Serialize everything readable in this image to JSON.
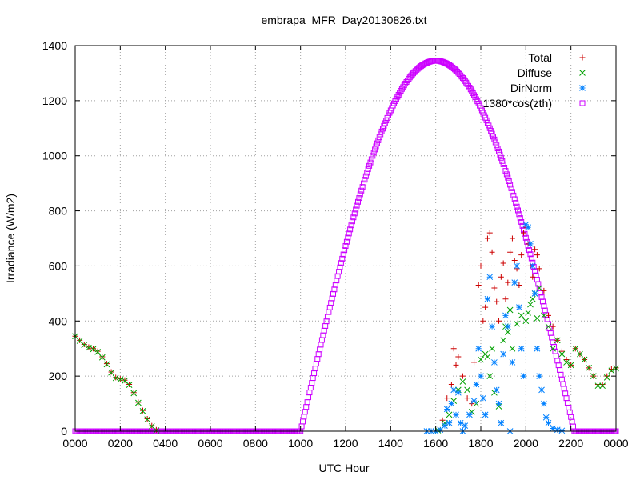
{
  "chart_data": {
    "type": "scatter",
    "title": "embrapa_MFR_Day20130826.txt",
    "xlabel": "UTC Hour",
    "ylabel": "Irradiance (W/m2)",
    "xlim": [
      0,
      24
    ],
    "ylim": [
      0,
      1400
    ],
    "grid": true,
    "legend_position": "top-right",
    "x_ticks": [
      {
        "v": 0,
        "label": "0000"
      },
      {
        "v": 2,
        "label": "0200"
      },
      {
        "v": 4,
        "label": "0400"
      },
      {
        "v": 6,
        "label": "0600"
      },
      {
        "v": 8,
        "label": "0800"
      },
      {
        "v": 10,
        "label": "1000"
      },
      {
        "v": 12,
        "label": "1200"
      },
      {
        "v": 14,
        "label": "1400"
      },
      {
        "v": 16,
        "label": "1600"
      },
      {
        "v": 18,
        "label": "1800"
      },
      {
        "v": 20,
        "label": "2000"
      },
      {
        "v": 22,
        "label": "2200"
      },
      {
        "v": 24,
        "label": "0000"
      }
    ],
    "y_ticks": [
      {
        "v": 0,
        "label": "0"
      },
      {
        "v": 200,
        "label": "200"
      },
      {
        "v": 400,
        "label": "400"
      },
      {
        "v": 600,
        "label": "600"
      },
      {
        "v": 800,
        "label": "800"
      },
      {
        "v": 1000,
        "label": "1000"
      },
      {
        "v": 1200,
        "label": "1200"
      },
      {
        "v": 1400,
        "label": "1400"
      }
    ],
    "series": [
      {
        "name": "Total",
        "marker": "plus",
        "color": "#cc0000",
        "points": [
          [
            0.0,
            345
          ],
          [
            0.2,
            330
          ],
          [
            0.4,
            315
          ],
          [
            0.6,
            305
          ],
          [
            0.8,
            300
          ],
          [
            1.0,
            290
          ],
          [
            1.2,
            270
          ],
          [
            1.4,
            245
          ],
          [
            1.6,
            215
          ],
          [
            1.8,
            195
          ],
          [
            2.0,
            190
          ],
          [
            2.2,
            185
          ],
          [
            2.4,
            170
          ],
          [
            2.6,
            140
          ],
          [
            2.8,
            105
          ],
          [
            3.0,
            75
          ],
          [
            3.2,
            45
          ],
          [
            3.4,
            20
          ],
          [
            3.6,
            5
          ],
          [
            16.1,
            5
          ],
          [
            16.3,
            40
          ],
          [
            16.5,
            120
          ],
          [
            16.7,
            170
          ],
          [
            16.8,
            300
          ],
          [
            16.9,
            240
          ],
          [
            17.0,
            270
          ],
          [
            17.2,
            200
          ],
          [
            17.4,
            120
          ],
          [
            17.6,
            100
          ],
          [
            17.7,
            250
          ],
          [
            17.9,
            530
          ],
          [
            18.0,
            600
          ],
          [
            18.1,
            400
          ],
          [
            18.2,
            450
          ],
          [
            18.3,
            700
          ],
          [
            18.4,
            720
          ],
          [
            18.5,
            650
          ],
          [
            18.6,
            520
          ],
          [
            18.7,
            470
          ],
          [
            18.8,
            400
          ],
          [
            18.9,
            560
          ],
          [
            19.0,
            610
          ],
          [
            19.1,
            480
          ],
          [
            19.2,
            540
          ],
          [
            19.3,
            650
          ],
          [
            19.4,
            700
          ],
          [
            19.5,
            620
          ],
          [
            19.6,
            590
          ],
          [
            19.7,
            530
          ],
          [
            19.8,
            640
          ],
          [
            19.9,
            720
          ],
          [
            20.0,
            740
          ],
          [
            20.1,
            680
          ],
          [
            20.2,
            600
          ],
          [
            20.3,
            560
          ],
          [
            20.4,
            660
          ],
          [
            20.5,
            640
          ],
          [
            20.6,
            590
          ],
          [
            20.8,
            510
          ],
          [
            21.0,
            420
          ],
          [
            21.2,
            380
          ],
          [
            21.4,
            330
          ],
          [
            21.6,
            290
          ],
          [
            21.8,
            260
          ],
          [
            22.0,
            240
          ],
          [
            22.2,
            300
          ],
          [
            22.4,
            280
          ],
          [
            22.6,
            260
          ],
          [
            22.8,
            230
          ],
          [
            23.0,
            200
          ],
          [
            23.2,
            170
          ],
          [
            23.4,
            170
          ],
          [
            23.6,
            200
          ],
          [
            23.8,
            225
          ],
          [
            24.0,
            230
          ]
        ]
      },
      {
        "name": "Diffuse",
        "marker": "cross",
        "color": "#00a000",
        "points": [
          [
            0.0,
            345
          ],
          [
            0.2,
            328
          ],
          [
            0.4,
            313
          ],
          [
            0.6,
            303
          ],
          [
            0.8,
            298
          ],
          [
            1.0,
            288
          ],
          [
            1.2,
            268
          ],
          [
            1.4,
            243
          ],
          [
            1.6,
            213
          ],
          [
            1.8,
            193
          ],
          [
            2.0,
            188
          ],
          [
            2.2,
            183
          ],
          [
            2.4,
            168
          ],
          [
            2.6,
            138
          ],
          [
            2.8,
            103
          ],
          [
            3.0,
            73
          ],
          [
            3.2,
            43
          ],
          [
            3.4,
            18
          ],
          [
            3.6,
            3
          ],
          [
            16.1,
            3
          ],
          [
            16.4,
            30
          ],
          [
            16.6,
            60
          ],
          [
            16.8,
            110
          ],
          [
            17.0,
            150
          ],
          [
            17.2,
            180
          ],
          [
            17.4,
            150
          ],
          [
            17.6,
            70
          ],
          [
            17.8,
            100
          ],
          [
            18.0,
            260
          ],
          [
            18.2,
            280
          ],
          [
            18.3,
            270
          ],
          [
            18.4,
            200
          ],
          [
            18.5,
            300
          ],
          [
            18.6,
            140
          ],
          [
            18.8,
            90
          ],
          [
            19.0,
            330
          ],
          [
            19.1,
            380
          ],
          [
            19.2,
            360
          ],
          [
            19.3,
            440
          ],
          [
            19.4,
            300
          ],
          [
            19.6,
            390
          ],
          [
            19.8,
            420
          ],
          [
            20.0,
            400
          ],
          [
            20.1,
            430
          ],
          [
            20.2,
            460
          ],
          [
            20.3,
            480
          ],
          [
            20.4,
            500
          ],
          [
            20.5,
            410
          ],
          [
            20.6,
            520
          ],
          [
            20.8,
            420
          ],
          [
            21.0,
            380
          ],
          [
            21.2,
            300
          ],
          [
            21.4,
            330
          ],
          [
            21.6,
            280
          ],
          [
            21.8,
            250
          ],
          [
            22.0,
            240
          ],
          [
            22.2,
            300
          ],
          [
            22.4,
            280
          ],
          [
            22.6,
            260
          ],
          [
            22.8,
            230
          ],
          [
            23.0,
            200
          ],
          [
            23.2,
            165
          ],
          [
            23.4,
            165
          ],
          [
            23.6,
            195
          ],
          [
            23.8,
            220
          ],
          [
            24.0,
            228
          ]
        ]
      },
      {
        "name": "DirNorm",
        "marker": "star",
        "color": "#0080ff",
        "points": [
          [
            15.6,
            0
          ],
          [
            15.8,
            0
          ],
          [
            16.0,
            0
          ],
          [
            16.2,
            5
          ],
          [
            16.4,
            20
          ],
          [
            16.5,
            80
          ],
          [
            16.6,
            30
          ],
          [
            16.7,
            100
          ],
          [
            16.8,
            150
          ],
          [
            16.9,
            60
          ],
          [
            17.0,
            140
          ],
          [
            17.1,
            30
          ],
          [
            17.2,
            0
          ],
          [
            17.3,
            20
          ],
          [
            17.5,
            60
          ],
          [
            17.7,
            110
          ],
          [
            17.8,
            170
          ],
          [
            17.9,
            300
          ],
          [
            18.0,
            200
          ],
          [
            18.1,
            120
          ],
          [
            18.2,
            60
          ],
          [
            18.3,
            480
          ],
          [
            18.4,
            560
          ],
          [
            18.5,
            380
          ],
          [
            18.6,
            250
          ],
          [
            18.7,
            150
          ],
          [
            18.8,
            100
          ],
          [
            18.9,
            30
          ],
          [
            19.0,
            280
          ],
          [
            19.1,
            420
          ],
          [
            19.2,
            380
          ],
          [
            19.3,
            0
          ],
          [
            19.4,
            250
          ],
          [
            19.5,
            540
          ],
          [
            19.6,
            600
          ],
          [
            19.7,
            450
          ],
          [
            19.8,
            300
          ],
          [
            19.9,
            200
          ],
          [
            20.0,
            750
          ],
          [
            20.1,
            740
          ],
          [
            20.2,
            680
          ],
          [
            20.3,
            600
          ],
          [
            20.4,
            500
          ],
          [
            20.5,
            300
          ],
          [
            20.6,
            200
          ],
          [
            20.7,
            150
          ],
          [
            20.8,
            100
          ],
          [
            20.9,
            50
          ],
          [
            21.0,
            30
          ],
          [
            21.2,
            10
          ],
          [
            21.4,
            5
          ],
          [
            21.6,
            2
          ]
        ]
      },
      {
        "name": "1380*cos(zth)",
        "marker": "square",
        "color": "#cc00ff",
        "sunrise": 10.0,
        "sunset": 22.15,
        "peak_time": 16.0,
        "peak": 1345
      }
    ]
  }
}
